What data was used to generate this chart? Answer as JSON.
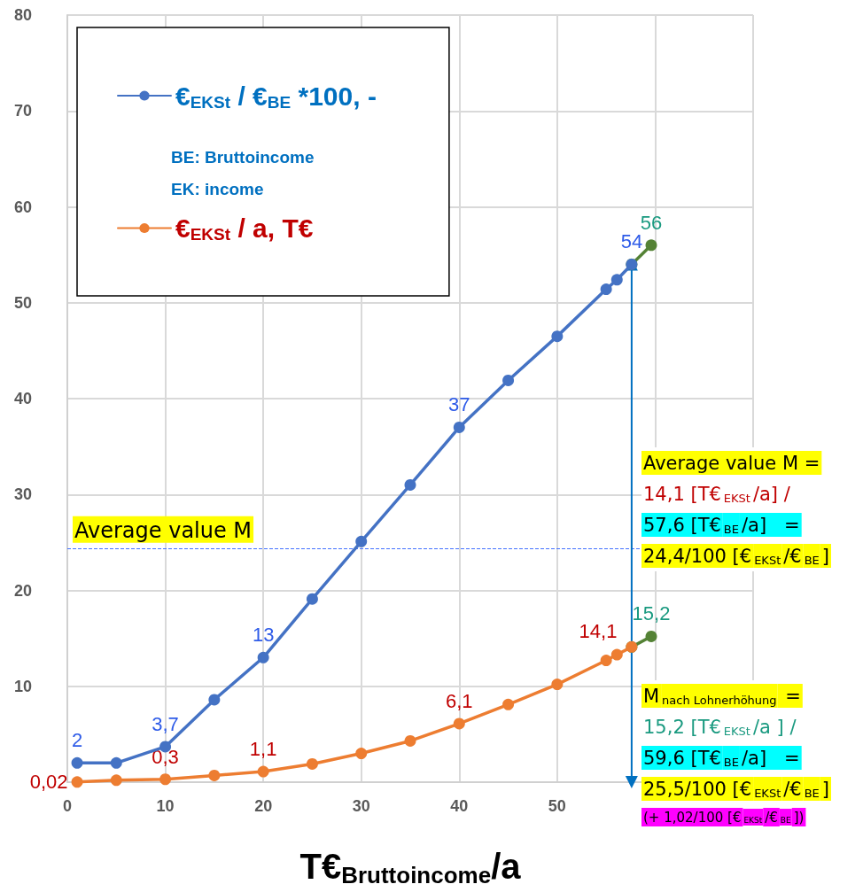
{
  "chart_data": {
    "type": "line",
    "xlabel": "T€$_{Bruttoincome}$/a",
    "xlim": [
      0,
      70
    ],
    "xticks": [
      0,
      10,
      20,
      30,
      40,
      50,
      {
        "value": 60,
        "label": null
      },
      {
        "value": 70,
        "label": null
      }
    ],
    "ylim": [
      0,
      80
    ],
    "yticks": [
      {
        "value": 0,
        "label": null
      },
      10,
      20,
      30,
      40,
      50,
      60,
      70,
      80
    ],
    "grid": true,
    "legend": "top left",
    "marker": "circle",
    "line_style": "solid",
    "series": [
      {
        "name": "€$_{EKSt}$ / €$_{BE}$ *100, -",
        "color": "#4472c4",
        "x": [
          1,
          5,
          10,
          15,
          20,
          25,
          30,
          35,
          40,
          45,
          50,
          55,
          56.1,
          57.6
        ],
        "values": [
          2,
          2,
          3.7,
          8.6,
          13,
          19.1,
          25.1,
          31,
          37,
          41.9,
          46.5,
          51.4,
          52.4,
          54
        ],
        "value_labels": [
          "2",
          null,
          "3,7",
          null,
          "13",
          null,
          null,
          null,
          "37",
          null,
          null,
          null,
          null,
          "54"
        ]
      },
      {
        "name": "€$_{EKSt}$ / a, T€",
        "color": "#ed7d31",
        "x": [
          1,
          5,
          10,
          15,
          20,
          25,
          30,
          35,
          40,
          45,
          50,
          55,
          56.1,
          57.6
        ],
        "values": [
          0.02,
          0.2,
          0.3,
          0.7,
          1.1,
          1.9,
          3,
          4.3,
          6.1,
          8.1,
          10.2,
          12.7,
          13.3,
          14.1
        ],
        "value_labels": [
          "0,02",
          null,
          "0,3",
          null,
          "1,1",
          null,
          null,
          null,
          "6,1",
          null,
          null,
          null,
          null,
          "14,1"
        ]
      },
      {
        "color": "#548235",
        "x": [
          57.6,
          59.6
        ],
        "values": [
          54,
          56
        ],
        "value_labels": [
          null,
          "56"
        ]
      },
      {
        "color": "#548235",
        "x": [
          57.6,
          59.6
        ],
        "values": [
          14.1,
          15.2
        ],
        "value_labels": [
          null,
          "15,2"
        ]
      },
      {
        "color": "#0070c0",
        "x": [
          57.6,
          57.6
        ],
        "values": [
          0,
          54
        ],
        "marker": "triangle"
      }
    ],
    "ref_lines": [
      {
        "axis": "y",
        "value": 24.4,
        "label": "Average value M",
        "color": "#4472ff",
        "line_style": "dashed"
      }
    ],
    "annotations": [
      "BE: Bruttoincome",
      "EK: income",
      "Average value M =\n14,1 [T€$_{EKSt}$/a] /\n57,6 [T€$_{BE}$/a]   =\n24,4/100 [€$_{EKSt}$/€$_{BE}$]",
      "M$_{nach Lohnerhöhung}$ =\n15,2 [T€$_{EKSt}$/a ] /\n59,6 [T€$_{BE}$/a]   =\n25,5/100 [€$_{EKSt}$/€$_{BE}$]\n(+ 1,02/100 [€$_{EKSt}$/€$_{BE}$])"
    ]
  }
}
